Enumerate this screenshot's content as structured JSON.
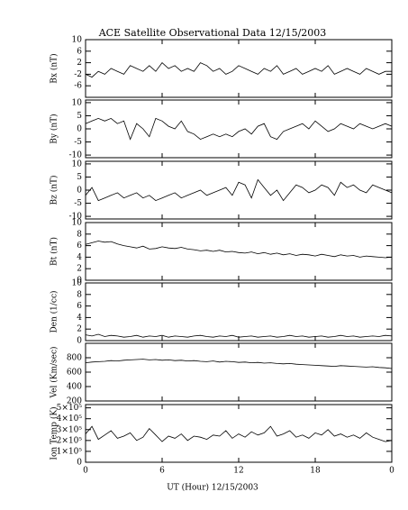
{
  "title": "ACE Satellite Observational Data   12/15/2003",
  "xlabel": "UT (Hour)  12/15/2003",
  "x": [
    0,
    0.5,
    1,
    1.5,
    2,
    2.5,
    3,
    3.5,
    4,
    4.5,
    5,
    5.5,
    6,
    6.5,
    7,
    7.5,
    8,
    8.5,
    9,
    9.5,
    10,
    10.5,
    11,
    11.5,
    12,
    12.5,
    13,
    13.5,
    14,
    14.5,
    15,
    15.5,
    16,
    16.5,
    17,
    17.5,
    18,
    18.5,
    19,
    19.5,
    20,
    20.5,
    21,
    21.5,
    22,
    22.5,
    23,
    23.5,
    24
  ],
  "xlim": [
    0,
    24
  ],
  "xticks": [
    0,
    6,
    12,
    18,
    {
      "value": 24,
      "label": "0"
    }
  ],
  "chart_data": [
    {
      "type": "line",
      "ylabel": "Bx (nT)",
      "ylim": [
        -10,
        10
      ],
      "yticks": [
        -6,
        -2,
        2,
        6,
        10
      ],
      "values": [
        -2,
        -3,
        -1,
        -2,
        0,
        -1,
        -2,
        1,
        0,
        -1,
        1,
        -1,
        2,
        0,
        1,
        -1,
        0,
        -1,
        2,
        1,
        -1,
        0,
        -2,
        -1,
        1,
        0,
        -1,
        -2,
        0,
        -1,
        1,
        -2,
        -1,
        0,
        -2,
        -1,
        0,
        -1,
        1,
        -2,
        -1,
        0,
        -1,
        -2,
        0,
        -1,
        -2,
        -1,
        -1
      ]
    },
    {
      "type": "line",
      "ylabel": "By (nT)",
      "ylim": [
        -11,
        11
      ],
      "yticks": [
        -10,
        -5,
        0,
        5,
        10
      ],
      "values": [
        2,
        3,
        4,
        3,
        4,
        2,
        3,
        -4,
        2,
        0,
        -3,
        4,
        3,
        1,
        0,
        3,
        -1,
        -2,
        -4,
        -3,
        -2,
        -3,
        -2,
        -3,
        -1,
        0,
        -2,
        1,
        2,
        -3,
        -4,
        -1,
        0,
        1,
        2,
        0,
        3,
        1,
        -1,
        0,
        2,
        1,
        0,
        2,
        1,
        0,
        1,
        2,
        1
      ]
    },
    {
      "type": "line",
      "ylabel": "Bz (nT)",
      "ylim": [
        -11,
        11
      ],
      "yticks": [
        -10,
        -5,
        0,
        5,
        10
      ],
      "values": [
        -2,
        1,
        -4,
        -3,
        -2,
        -1,
        -3,
        -2,
        -1,
        -3,
        -2,
        -4,
        -3,
        -2,
        -1,
        -3,
        -2,
        -1,
        0,
        -2,
        -1,
        0,
        1,
        -2,
        3,
        2,
        -3,
        4,
        1,
        -2,
        0,
        -4,
        -1,
        2,
        1,
        -1,
        0,
        2,
        1,
        -2,
        3,
        1,
        2,
        0,
        -1,
        2,
        1,
        0,
        -1
      ]
    },
    {
      "type": "line",
      "ylabel": "Bt (nT)",
      "ylim": [
        0,
        10
      ],
      "yticks": [
        0,
        2,
        4,
        6,
        8,
        10
      ],
      "values": [
        6.2,
        6.5,
        6.8,
        6.6,
        6.7,
        6.3,
        6.0,
        5.8,
        5.6,
        5.9,
        5.4,
        5.5,
        5.8,
        5.6,
        5.5,
        5.7,
        5.4,
        5.3,
        5.1,
        5.2,
        5.0,
        5.2,
        4.9,
        5.0,
        4.8,
        4.7,
        4.9,
        4.6,
        4.8,
        4.5,
        4.7,
        4.4,
        4.6,
        4.3,
        4.5,
        4.4,
        4.2,
        4.5,
        4.3,
        4.1,
        4.4,
        4.2,
        4.3,
        4.0,
        4.2,
        4.1,
        4.0,
        3.9,
        4.0
      ]
    },
    {
      "type": "line",
      "ylabel": "Den (1/cc)",
      "ylim": [
        0,
        10
      ],
      "yticks": [
        0,
        2,
        4,
        6,
        8,
        10
      ],
      "values": [
        1.0,
        0.8,
        1.1,
        0.7,
        0.9,
        0.8,
        0.6,
        0.7,
        0.9,
        0.6,
        0.8,
        0.7,
        0.9,
        0.6,
        0.8,
        0.7,
        0.6,
        0.8,
        0.9,
        0.7,
        0.6,
        0.8,
        0.7,
        0.9,
        0.6,
        0.7,
        0.8,
        0.6,
        0.7,
        0.8,
        0.6,
        0.7,
        0.9,
        0.7,
        0.8,
        0.6,
        0.7,
        0.8,
        0.6,
        0.7,
        0.9,
        0.7,
        0.8,
        0.6,
        0.7,
        0.8,
        0.7,
        0.9,
        0.8
      ]
    },
    {
      "type": "line",
      "ylabel": "Vel (Km/sec)",
      "ylim": [
        200,
        1000
      ],
      "yticks": [
        200,
        400,
        600,
        800
      ],
      "values": [
        730,
        740,
        745,
        750,
        760,
        755,
        765,
        770,
        775,
        780,
        770,
        775,
        765,
        770,
        760,
        765,
        755,
        760,
        750,
        745,
        755,
        740,
        750,
        745,
        735,
        740,
        730,
        735,
        725,
        730,
        720,
        715,
        720,
        710,
        705,
        700,
        695,
        690,
        685,
        680,
        690,
        685,
        680,
        675,
        670,
        675,
        665,
        660,
        650
      ]
    },
    {
      "type": "line",
      "ylabel": "Ion Temp (K)",
      "ylim": [
        0,
        530000
      ],
      "yticks": [
        0,
        {
          "value": 100000,
          "label": "1×10⁵"
        },
        {
          "value": 200000,
          "label": "2×10⁵"
        },
        {
          "value": 300000,
          "label": "3×10⁵"
        },
        {
          "value": 400000,
          "label": "4×10⁵"
        },
        {
          "value": 500000,
          "label": "5×10⁵"
        }
      ],
      "values": [
        260000,
        330000,
        210000,
        250000,
        290000,
        220000,
        240000,
        270000,
        200000,
        230000,
        310000,
        250000,
        190000,
        240000,
        220000,
        260000,
        200000,
        240000,
        230000,
        210000,
        250000,
        240000,
        290000,
        220000,
        260000,
        230000,
        280000,
        250000,
        270000,
        330000,
        240000,
        260000,
        290000,
        230000,
        250000,
        220000,
        270000,
        250000,
        300000,
        240000,
        260000,
        230000,
        250000,
        220000,
        270000,
        230000,
        210000,
        190000,
        200000
      ]
    }
  ]
}
